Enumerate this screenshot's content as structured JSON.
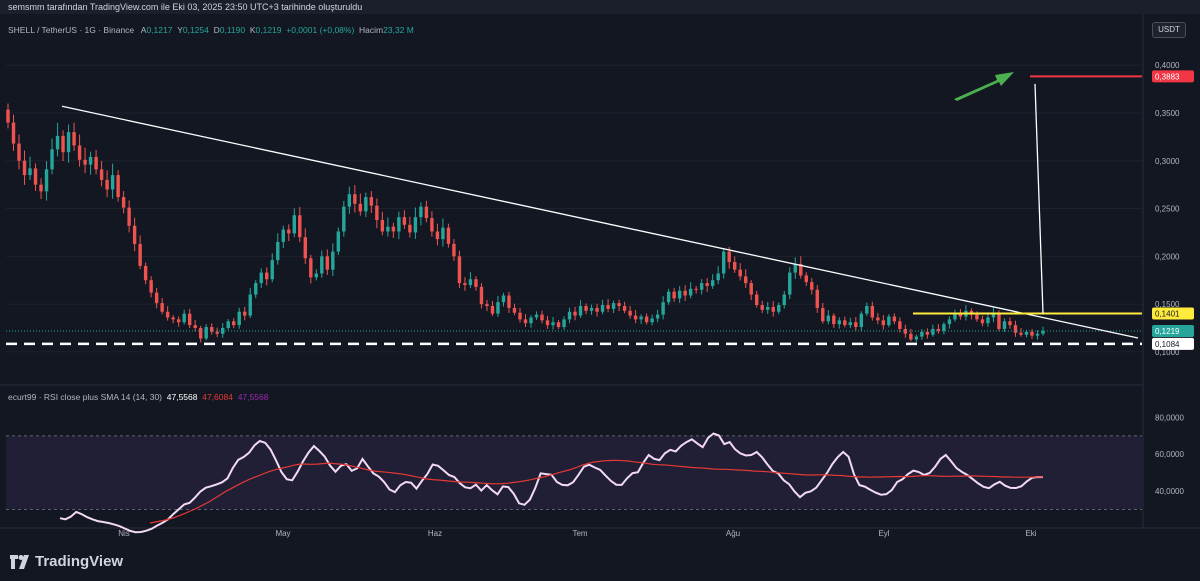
{
  "header": {
    "credit": "semsmm tarafından TradingView.com ile Eki 03, 2025 23:50 UTC+3 tarihinde oluşturuldu"
  },
  "legend": {
    "symbol": "SHELL / TetherUS · 1G · Binance",
    "a_label": "A",
    "a_value": "0,1217",
    "y_label": "Y",
    "y_value": "0,1254",
    "d_label": "D",
    "d_value": "0,1190",
    "k_label": "K",
    "k_value": "0,1219",
    "change": "+0,0001 (+0,08%)",
    "volume_label": "Hacim",
    "volume_value": "23,32 M"
  },
  "currency_button": "USDT",
  "rsi_legend": {
    "name": "ecurt99 · RSI close plus SMA 14 (14, 30)",
    "rsi": "47,5568",
    "sma": "47,6084",
    "extra": "47,5568"
  },
  "price_tags": {
    "target": "0,3883",
    "resistance": "0,1401",
    "last": "0,1219",
    "support": "0,1084"
  },
  "brand": "TradingView",
  "colors": {
    "up": "#26a69a",
    "down": "#ef5350",
    "resistance": "#ffeb3b",
    "target": "#f23645",
    "arrow": "#4caf50",
    "rsi": "#f3d9f3",
    "rsi_ma": "#e53935",
    "background": "#131722"
  },
  "chart_data": [
    {
      "type": "candlestick",
      "title": "SHELL / TetherUS · 1G · Binance",
      "x_tick_labels": [
        "Nis",
        "May",
        "Haz",
        "Tem",
        "Ağu",
        "Eyl",
        "Eki"
      ],
      "y_tick_labels": [
        "0,4000",
        "0,3500",
        "0,3000",
        "0,2500",
        "0,2000",
        "0,1500",
        "0,1000"
      ],
      "y_ticks": [
        0.4,
        0.35,
        0.3,
        0.25,
        0.2,
        0.15,
        0.1
      ],
      "ylim": [
        0.0915,
        0.4222
      ],
      "series_close": [
        0.34,
        0.318,
        0.3,
        0.285,
        0.292,
        0.275,
        0.268,
        0.291,
        0.312,
        0.326,
        0.309,
        0.33,
        0.316,
        0.301,
        0.296,
        0.304,
        0.291,
        0.28,
        0.27,
        0.285,
        0.262,
        0.251,
        0.232,
        0.213,
        0.19,
        0.175,
        0.162,
        0.151,
        0.142,
        0.136,
        0.134,
        0.131,
        0.14,
        0.128,
        0.125,
        0.114,
        0.126,
        0.121,
        0.119,
        0.125,
        0.132,
        0.128,
        0.142,
        0.138,
        0.16,
        0.172,
        0.183,
        0.176,
        0.196,
        0.215,
        0.228,
        0.224,
        0.243,
        0.22,
        0.198,
        0.178,
        0.182,
        0.2,
        0.186,
        0.205,
        0.226,
        0.252,
        0.265,
        0.255,
        0.247,
        0.262,
        0.253,
        0.238,
        0.226,
        0.231,
        0.226,
        0.241,
        0.233,
        0.225,
        0.241,
        0.252,
        0.24,
        0.226,
        0.218,
        0.23,
        0.213,
        0.2,
        0.172,
        0.17,
        0.176,
        0.168,
        0.15,
        0.148,
        0.14,
        0.152,
        0.159,
        0.146,
        0.141,
        0.134,
        0.13,
        0.136,
        0.139,
        0.133,
        0.128,
        0.131,
        0.126,
        0.134,
        0.142,
        0.138,
        0.148,
        0.143,
        0.146,
        0.142,
        0.149,
        0.145,
        0.151,
        0.148,
        0.143,
        0.138,
        0.134,
        0.137,
        0.131,
        0.135,
        0.139,
        0.152,
        0.163,
        0.156,
        0.164,
        0.159,
        0.166,
        0.165,
        0.172,
        0.169,
        0.175,
        0.182,
        0.205,
        0.194,
        0.186,
        0.179,
        0.172,
        0.16,
        0.149,
        0.144,
        0.147,
        0.142,
        0.149,
        0.16,
        0.183,
        0.192,
        0.18,
        0.173,
        0.165,
        0.146,
        0.132,
        0.138,
        0.129,
        0.133,
        0.128,
        0.131,
        0.126,
        0.14,
        0.148,
        0.136,
        0.133,
        0.128,
        0.137,
        0.132,
        0.124,
        0.119,
        0.113,
        0.116,
        0.121,
        0.118,
        0.124,
        0.122,
        0.129,
        0.134,
        0.14,
        0.137,
        0.143,
        0.139,
        0.134,
        0.13,
        0.136,
        0.141,
        0.124,
        0.132,
        0.128,
        0.12,
        0.118,
        0.121,
        0.117,
        0.119,
        0.1219
      ],
      "annotations": [
        {
          "type": "trendline",
          "from": {
            "bar": 0,
            "price": 0.357
          },
          "to": {
            "bar": 187,
            "price": 0.1145
          }
        },
        {
          "type": "horizontal",
          "price": 0.1401,
          "label": "0,1401"
        },
        {
          "type": "horizontal_dashed",
          "price": 0.1084,
          "label": "0,1084"
        },
        {
          "type": "target",
          "price": 0.3883,
          "label": "0,3883"
        }
      ]
    },
    {
      "type": "line",
      "title": "ecurt99 · RSI close plus SMA 14 (14, 30)",
      "y_tick_labels": [
        "80,0000",
        "60,0000",
        "40,0000"
      ],
      "y_ticks": [
        80,
        60,
        40
      ],
      "ylim": [
        25.3,
        89.5
      ],
      "bands": [
        70,
        30
      ],
      "series": [
        {
          "name": "RSI",
          "values": [
            25.2,
            24.6,
            26,
            28.6,
            27.4,
            25.8,
            24.6,
            23.6,
            23.1,
            22.6,
            21.8,
            20.9,
            19.6,
            18.3,
            17.6,
            17.7,
            18.4,
            19.5,
            21.2,
            22.7,
            24.6,
            27.5,
            30.1,
            32.7,
            33.5,
            36.4,
            39.7,
            41.8,
            42.6,
            43.6,
            44.7,
            46.8,
            52.5,
            56.9,
            58.5,
            60.8,
            64.8,
            67.2,
            66.2,
            62.5,
            56.7,
            50.3,
            46.4,
            45.8,
            50.5,
            56.1,
            60.9,
            64.4,
            61.8,
            58.7,
            53.8,
            50.5,
            53.7,
            54.6,
            51,
            52.3,
            57.4,
            53.4,
            49.6,
            47.9,
            44.9,
            40.8,
            39.4,
            43.1,
            44.9,
            44.5,
            41.3,
            45.5,
            49.2,
            54.4,
            53.7,
            51.3,
            48.7,
            47.6,
            44.3,
            42,
            41.5,
            43.4,
            40.2,
            43.2,
            40.4,
            38.2,
            42.5,
            42.1,
            38.5,
            33.3,
            32.5,
            35.3,
            41.7,
            49.6,
            49.2,
            48.8,
            44.9,
            43.3,
            43.1,
            44.8,
            48.8,
            53.2,
            54.3,
            52.8,
            51.5,
            48.4,
            45.5,
            43.4,
            43.3,
            46.9,
            49.7,
            50.2,
            55.4,
            59.6,
            57.5,
            56.8,
            60.5,
            62.4,
            61.5,
            64.6,
            66.6,
            68.1,
            65.9,
            63.8,
            68.9,
            71.3,
            70.2,
            65.5,
            66.6,
            62.7,
            60.4,
            59.3,
            59.6,
            61.2,
            58.3,
            54.4,
            50.8,
            49.5,
            45.8,
            43.7,
            39.7,
            36.6,
            39,
            39.8,
            41.8,
            45.8,
            49.8,
            54.7,
            58.5,
            61.2,
            58.6,
            49.1,
            43.2,
            42.4,
            40.7,
            39.1,
            38,
            38.3,
            40.5,
            44.9,
            46.4,
            49.2,
            51.1,
            50.3,
            48.7,
            49.8,
            53.1,
            57.4,
            59.6,
            56.1,
            52.4,
            50.3,
            48.7,
            46.4,
            44.1,
            42.3,
            41.5,
            43.6,
            45,
            42.9,
            41.7,
            41.6,
            42.6,
            45.2,
            47.2,
            47.6,
            47.5568
          ]
        },
        {
          "name": "SMA",
          "values": [
            22.6,
            23.2,
            23.7,
            24.5,
            25.3,
            26.5,
            27.7,
            29.1,
            30.4,
            32.1,
            33.7,
            35.6,
            37.5,
            39.5,
            41.2,
            42.8,
            44.5,
            46,
            47.3,
            48.5,
            49.8,
            50.9,
            51.8,
            52.5,
            53.2,
            54,
            54.6,
            54.6,
            54.5,
            54.6,
            54.9,
            55.2,
            54.9,
            54.6,
            54.3,
            53.6,
            52.9,
            52.1,
            51.4,
            50.8,
            50.5,
            50.2,
            49.9,
            49.5,
            49.1,
            48.5,
            47.8,
            47.2,
            46.6,
            46.2,
            46,
            45.7,
            45.4,
            45.1,
            44.9,
            44.8,
            44.6,
            44.4,
            44.2,
            44,
            43.9,
            44,
            44.2,
            44.6,
            45,
            45.5,
            46.1,
            46.8,
            47.4,
            48.2,
            49.1,
            50,
            50.8,
            51.7,
            52.8,
            54,
            55,
            55.7,
            56.1,
            56.5,
            56.6,
            56.7,
            56.5,
            56.3,
            55.9,
            55.5,
            55.1,
            54.6,
            54.3,
            54.2,
            54,
            53.7,
            53.4,
            53.1,
            52.8,
            52.6,
            52.5,
            52.2,
            51.9,
            51.8,
            51.8,
            51.6,
            51.4,
            51.3,
            51.1,
            50.8,
            50.7,
            50.5,
            50.2,
            49.9,
            49.7,
            49.4,
            49.2,
            48.9,
            48.7,
            48.7,
            48.8,
            48.8,
            48.7,
            48.5,
            48.4,
            48.1,
            47.8,
            47.6,
            47.6,
            47.5,
            47.6,
            47.6,
            47.7,
            47.8,
            47.9,
            47.8,
            47.9,
            48.1,
            48.3,
            48.3,
            48.2,
            48.1,
            48,
            48,
            48.1,
            48.1,
            48.2,
            48.2,
            48.1,
            48,
            47.9,
            47.8,
            47.6,
            47.6,
            47.5,
            47.5,
            47.5,
            47.5,
            47.6,
            47.6084
          ]
        }
      ]
    }
  ]
}
